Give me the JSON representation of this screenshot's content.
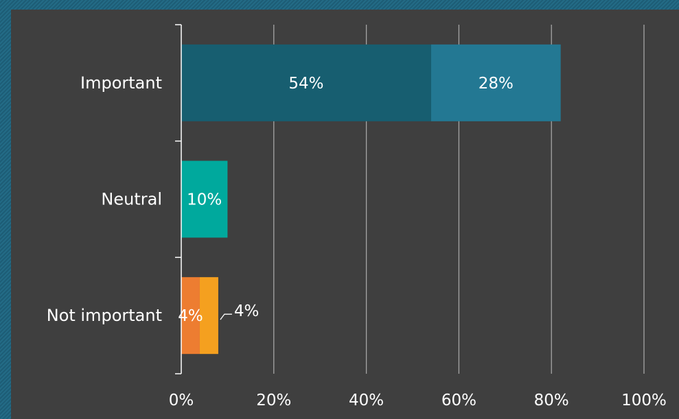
{
  "colors": {
    "background": "#3f3f3f",
    "frame": "#1f5f79",
    "gridline": "#a6a6a6",
    "text": "#ffffff"
  },
  "chart_data": {
    "type": "bar",
    "orientation": "horizontal",
    "stacked": true,
    "categories": [
      "Important",
      "Neutral",
      "Not important"
    ],
    "segments": [
      [
        {
          "value": 54,
          "label": "54%",
          "color": "#175e70"
        },
        {
          "value": 28,
          "label": "28%",
          "color": "#237893"
        }
      ],
      [
        {
          "value": 10,
          "label": "10%",
          "color": "#00a99d"
        }
      ],
      [
        {
          "value": 4,
          "label": "4%",
          "color": "#ed7d31"
        },
        {
          "value": 4,
          "label": "4%",
          "color": "#f5a01f",
          "label_outside": true
        }
      ]
    ],
    "xlim": [
      0,
      100
    ],
    "xticks": [
      "0%",
      "20%",
      "40%",
      "60%",
      "80%",
      "100%"
    ],
    "grid": true,
    "title": "",
    "xlabel": "",
    "ylabel": ""
  }
}
